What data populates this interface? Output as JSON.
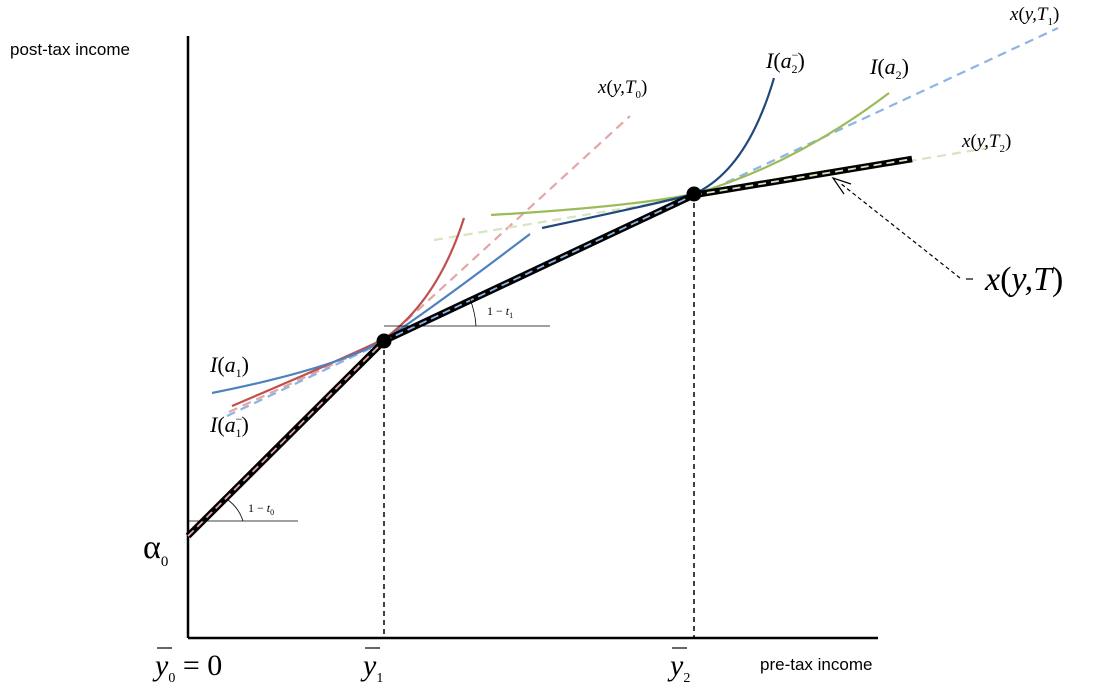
{
  "axes": {
    "y_label": "post-tax income",
    "x_label": "pre-tax income"
  },
  "intercept": {
    "symbol": "α",
    "subscript": "0"
  },
  "x_ticks": [
    {
      "symbol": "y",
      "subscript": "0",
      "suffix": " = 0"
    },
    {
      "symbol": "y",
      "subscript": "1",
      "suffix": ""
    },
    {
      "symbol": "y",
      "subscript": "2",
      "suffix": ""
    }
  ],
  "slopes": [
    {
      "prefix": "1 − ",
      "symbol": "t",
      "subscript": "0"
    },
    {
      "prefix": "1 − ",
      "symbol": "t",
      "subscript": "1"
    }
  ],
  "budget_lines": [
    {
      "lead": "x",
      "args": "y,T",
      "subscript": "0"
    },
    {
      "lead": "x",
      "args": "y,T",
      "subscript": "1"
    },
    {
      "lead": "x",
      "args": "y,T",
      "subscript": "2"
    }
  ],
  "indifference_curves": [
    {
      "lead": "I",
      "arg": "a",
      "subscript": "1",
      "superscript": ""
    },
    {
      "lead": "I",
      "arg": "a",
      "subscript": "1",
      "superscript": "−"
    },
    {
      "lead": "I",
      "arg": "a",
      "subscript": "2",
      "superscript": "−"
    },
    {
      "lead": "I",
      "arg": "a",
      "subscript": "2",
      "superscript": ""
    }
  ],
  "tax_schedule": {
    "lead": "x",
    "args": "y,T"
  },
  "colors": {
    "schedule": "#000000",
    "t0_line": "#e3a6a6",
    "t1_line": "#8eb4e3",
    "t2_line": "#d7e4bd",
    "curve_a1": "#4f81bd",
    "curve_a1_minus": "#c0504d",
    "curve_a2_minus": "#1f497d",
    "curve_a2": "#9bbb59"
  }
}
